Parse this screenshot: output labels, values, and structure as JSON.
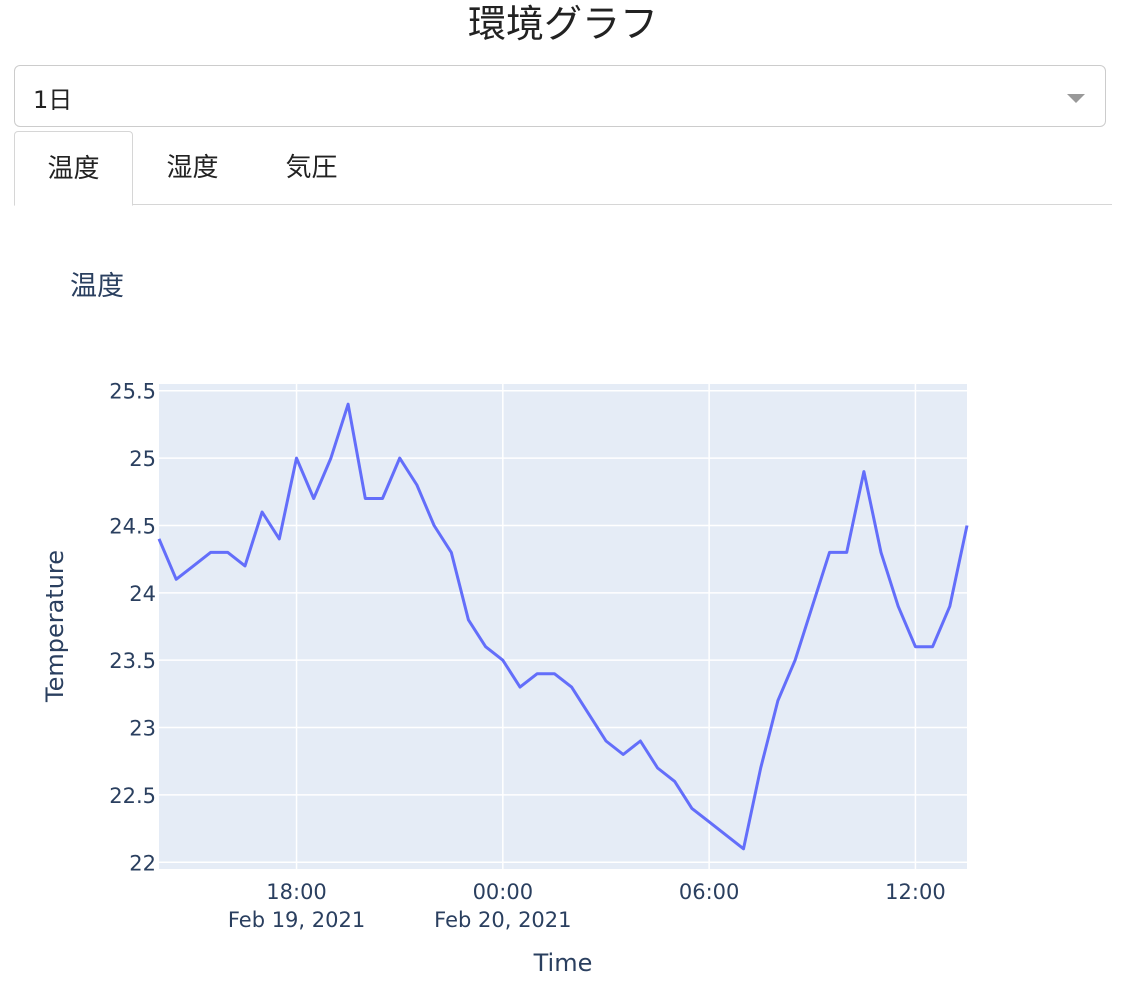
{
  "page": {
    "title": "環境グラフ"
  },
  "range_select": {
    "value": "1日"
  },
  "tabs": [
    {
      "label": "温度",
      "selected": true
    },
    {
      "label": "湿度",
      "selected": false
    },
    {
      "label": "気圧",
      "selected": false
    }
  ],
  "colors": {
    "line": "#636efa",
    "plot_bg": "#e5ecf6",
    "grid": "#ffffff",
    "text": "#2a3f5f"
  },
  "chart_data": {
    "type": "line",
    "title": "温度",
    "xlabel": "Time",
    "ylabel": "Temperature",
    "x_range": [
      "2021-02-19 14:00",
      "2021-02-20 13:30"
    ],
    "ylim": [
      21.95,
      25.55
    ],
    "y_ticks": [
      "22",
      "22.5",
      "23",
      "23.5",
      "24",
      "24.5",
      "25",
      "25.5"
    ],
    "x_ticks": [
      {
        "time": "2021-02-19 18:00",
        "label": "18:00",
        "sublabel": "Feb 19, 2021"
      },
      {
        "time": "2021-02-20 00:00",
        "label": "00:00",
        "sublabel": "Feb 20, 2021"
      },
      {
        "time": "2021-02-20 06:00",
        "label": "06:00",
        "sublabel": ""
      },
      {
        "time": "2021-02-20 12:00",
        "label": "12:00",
        "sublabel": ""
      }
    ],
    "grid": true,
    "series": [
      {
        "x": [
          "2021-02-19 14:00",
          "2021-02-19 14:30",
          "2021-02-19 15:00",
          "2021-02-19 15:30",
          "2021-02-19 16:00",
          "2021-02-19 16:30",
          "2021-02-19 17:00",
          "2021-02-19 17:30",
          "2021-02-19 18:00",
          "2021-02-19 18:30",
          "2021-02-19 19:00",
          "2021-02-19 19:30",
          "2021-02-19 20:00",
          "2021-02-19 20:30",
          "2021-02-19 21:00",
          "2021-02-19 21:30",
          "2021-02-19 22:00",
          "2021-02-19 22:30",
          "2021-02-19 23:00",
          "2021-02-19 23:30",
          "2021-02-20 00:00",
          "2021-02-20 00:30",
          "2021-02-20 01:00",
          "2021-02-20 01:30",
          "2021-02-20 02:00",
          "2021-02-20 02:30",
          "2021-02-20 03:00",
          "2021-02-20 03:30",
          "2021-02-20 04:00",
          "2021-02-20 04:30",
          "2021-02-20 05:00",
          "2021-02-20 05:30",
          "2021-02-20 06:00",
          "2021-02-20 06:30",
          "2021-02-20 07:00",
          "2021-02-20 07:30",
          "2021-02-20 08:00",
          "2021-02-20 08:30",
          "2021-02-20 09:00",
          "2021-02-20 09:30",
          "2021-02-20 10:00",
          "2021-02-20 10:30",
          "2021-02-20 11:00",
          "2021-02-20 11:30",
          "2021-02-20 12:00",
          "2021-02-20 12:30",
          "2021-02-20 13:00",
          "2021-02-20 13:30"
        ],
        "y": [
          24.4,
          24.1,
          24.2,
          24.3,
          24.3,
          24.2,
          24.6,
          24.4,
          25.0,
          24.7,
          25.0,
          25.4,
          24.7,
          24.7,
          25.0,
          24.8,
          24.5,
          24.3,
          23.8,
          23.6,
          23.5,
          23.3,
          23.4,
          23.4,
          23.3,
          23.1,
          22.9,
          22.8,
          22.9,
          22.7,
          22.6,
          22.4,
          22.3,
          22.2,
          22.1,
          22.7,
          23.2,
          23.5,
          23.9,
          24.3,
          24.3,
          24.9,
          24.3,
          23.9,
          23.6,
          23.6,
          23.9,
          24.5
        ]
      }
    ]
  }
}
